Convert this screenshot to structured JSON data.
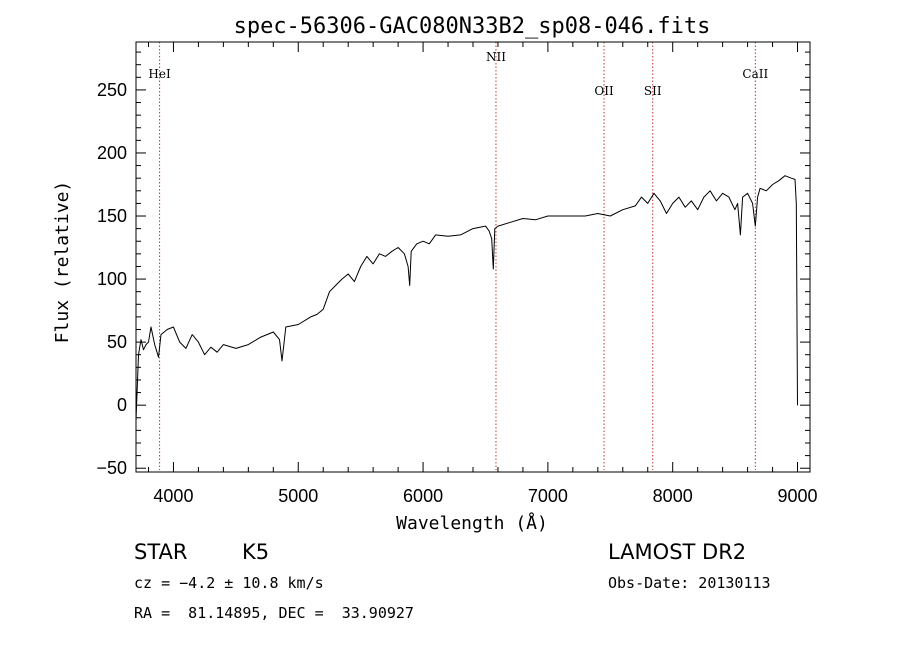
{
  "chart_data": {
    "type": "line",
    "title": "spec-56306-GAC080N33B2_sp08-046.fits",
    "xlabel": "Wavelength (Å)",
    "ylabel": "Flux (relative)",
    "xlim": [
      3700,
      9100
    ],
    "ylim": [
      -53,
      288
    ],
    "x_ticks": [
      4000,
      5000,
      6000,
      7000,
      8000,
      9000
    ],
    "y_ticks": [
      -50,
      0,
      50,
      100,
      150,
      200,
      250
    ],
    "x_tick_labels": [
      "4000",
      "5000",
      "6000",
      "7000",
      "8000",
      "9000"
    ],
    "y_tick_labels": [
      "−50",
      "0",
      "50",
      "100",
      "150",
      "200",
      "250"
    ],
    "grid": false,
    "series": [
      {
        "color": "#000000",
        "x": [
          3700,
          3720,
          3740,
          3760,
          3780,
          3800,
          3820,
          3850,
          3880,
          3900,
          3950,
          4000,
          4050,
          4100,
          4150,
          4200,
          4250,
          4300,
          4350,
          4400,
          4500,
          4600,
          4700,
          4800,
          4850,
          4870,
          4900,
          5000,
          5100,
          5150,
          5200,
          5250,
          5300,
          5350,
          5400,
          5450,
          5500,
          5550,
          5600,
          5650,
          5700,
          5750,
          5800,
          5850,
          5880,
          5893,
          5905,
          5950,
          6000,
          6050,
          6100,
          6200,
          6300,
          6400,
          6500,
          6530,
          6550,
          6563,
          6575,
          6600,
          6700,
          6800,
          6900,
          7000,
          7100,
          7200,
          7300,
          7400,
          7500,
          7600,
          7700,
          7750,
          7800,
          7850,
          7900,
          7950,
          8000,
          8050,
          8100,
          8150,
          8200,
          8250,
          8300,
          8350,
          8400,
          8450,
          8498,
          8520,
          8542,
          8560,
          8600,
          8640,
          8662,
          8680,
          8700,
          8750,
          8800,
          8850,
          8900,
          8950,
          8980,
          8990,
          9000
        ],
        "y": [
          -12,
          40,
          52,
          44,
          48,
          50,
          62,
          48,
          38,
          56,
          60,
          62,
          50,
          45,
          56,
          50,
          40,
          46,
          42,
          48,
          45,
          48,
          54,
          58,
          52,
          35,
          62,
          64,
          70,
          72,
          76,
          90,
          95,
          100,
          104,
          98,
          110,
          118,
          112,
          120,
          118,
          122,
          125,
          120,
          110,
          95,
          122,
          128,
          130,
          128,
          135,
          134,
          135,
          140,
          142,
          138,
          132,
          108,
          140,
          142,
          145,
          148,
          147,
          150,
          150,
          150,
          150,
          152,
          150,
          155,
          158,
          165,
          160,
          168,
          162,
          152,
          160,
          165,
          157,
          162,
          155,
          165,
          170,
          162,
          168,
          165,
          155,
          160,
          135,
          165,
          168,
          160,
          142,
          165,
          172,
          170,
          175,
          178,
          182,
          180,
          179,
          160,
          0
        ]
      }
    ],
    "lines": [
      {
        "label": "HeI",
        "x": 3889
      },
      {
        "label": "NII",
        "x": 6584
      },
      {
        "label": "OII",
        "x": 7450
      },
      {
        "label": "SII",
        "x": 7840
      },
      {
        "label": "CaII",
        "x": 8662
      }
    ]
  },
  "info": {
    "object_class": "STAR",
    "subclass": "K5",
    "cz": "cz = −4.2 ± 10.8 km/s",
    "radec": "RA =  81.14895, DEC =  33.90927",
    "survey": "LAMOST DR2",
    "obs_date": "Obs-Date: 20130113"
  },
  "colors": {
    "axis": "#000000",
    "line_marker": "#c0392b",
    "spectrum": "#000000"
  }
}
